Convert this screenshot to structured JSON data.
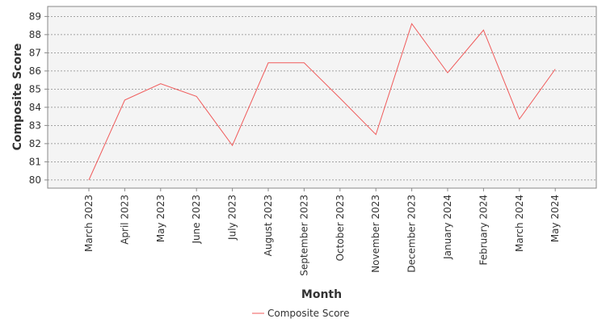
{
  "chart_data": {
    "type": "line",
    "title": "",
    "xlabel": "Month",
    "ylabel": "Composite Score",
    "categories": [
      "March 2023",
      "April 2023",
      "May 2023",
      "June 2023",
      "July 2023",
      "August 2023",
      "September 2023",
      "October 2023",
      "November 2023",
      "December 2023",
      "January 2024",
      "February 2024",
      "March 2024",
      "May 2024"
    ],
    "series": [
      {
        "name": "Composite Score",
        "values": [
          80.0,
          84.4,
          85.3,
          84.6,
          81.9,
          86.45,
          86.45,
          84.5,
          82.5,
          88.6,
          85.9,
          88.25,
          83.35,
          86.1
        ]
      }
    ],
    "yticks": [
      80,
      81,
      82,
      83,
      84,
      85,
      86,
      87,
      88,
      89
    ],
    "ylim": [
      79.55,
      89.55
    ],
    "grid": true,
    "legend": "bottom",
    "colors": {
      "line": "#f05a5a",
      "plot_bg": "#f4f4f4",
      "grid": "#888888",
      "frame": "#888888"
    }
  }
}
